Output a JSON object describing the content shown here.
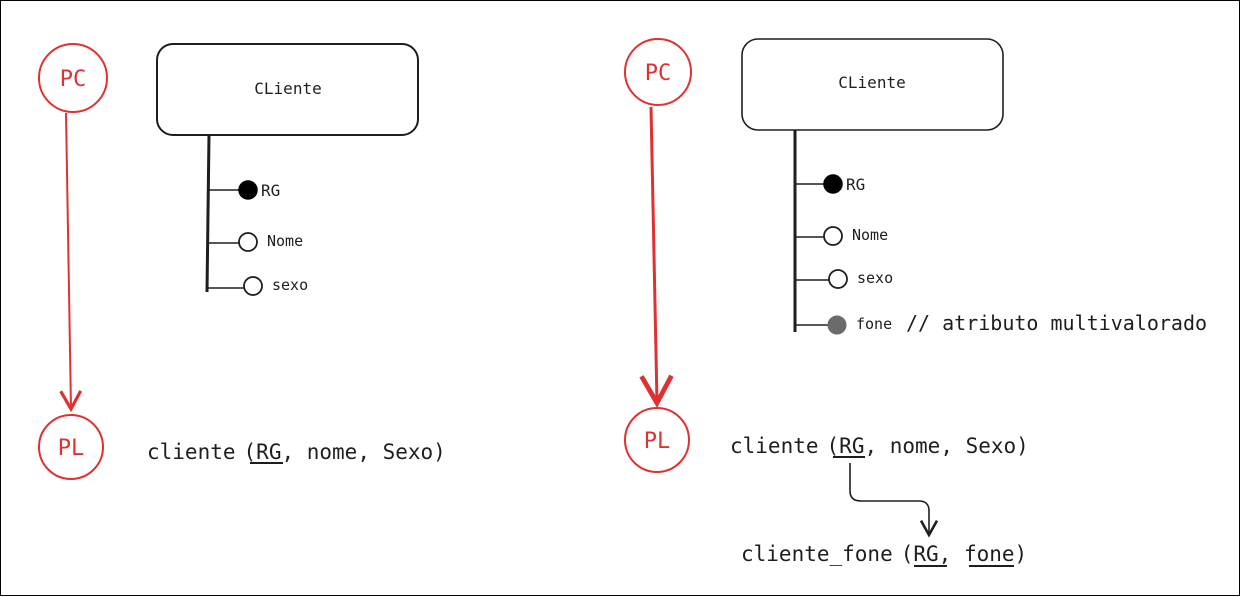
{
  "colors": {
    "ink": "#1e1e1e",
    "accent": "#e03131",
    "multivalued": "#6b6b6b"
  },
  "left": {
    "pc_label": "PC",
    "pl_label": "PL",
    "entity": "CLiente",
    "attributes": [
      {
        "name": "RG",
        "kind": "key"
      },
      {
        "name": "Nome",
        "kind": "simple"
      },
      {
        "name": "sexo",
        "kind": "simple"
      }
    ],
    "relation": {
      "name": "cliente",
      "open": "(",
      "key": "RG",
      "rest": ", nome, Sexo)"
    }
  },
  "right": {
    "pc_label": "PC",
    "pl_label": "PL",
    "entity": "CLiente",
    "attributes": [
      {
        "name": "RG",
        "kind": "key"
      },
      {
        "name": "Nome",
        "kind": "simple"
      },
      {
        "name": "sexo",
        "kind": "simple"
      },
      {
        "name": "fone",
        "kind": "multivalued"
      }
    ],
    "annotation": "// atributo multivalorado",
    "relation": {
      "name": "cliente",
      "open": "(",
      "key": "RG",
      "rest": ", nome, Sexo)"
    },
    "derived_relation": {
      "name": "cliente_fone",
      "open": "(",
      "key1": "RG",
      "sep": ", ",
      "key2": "fone",
      "close": ")"
    }
  }
}
